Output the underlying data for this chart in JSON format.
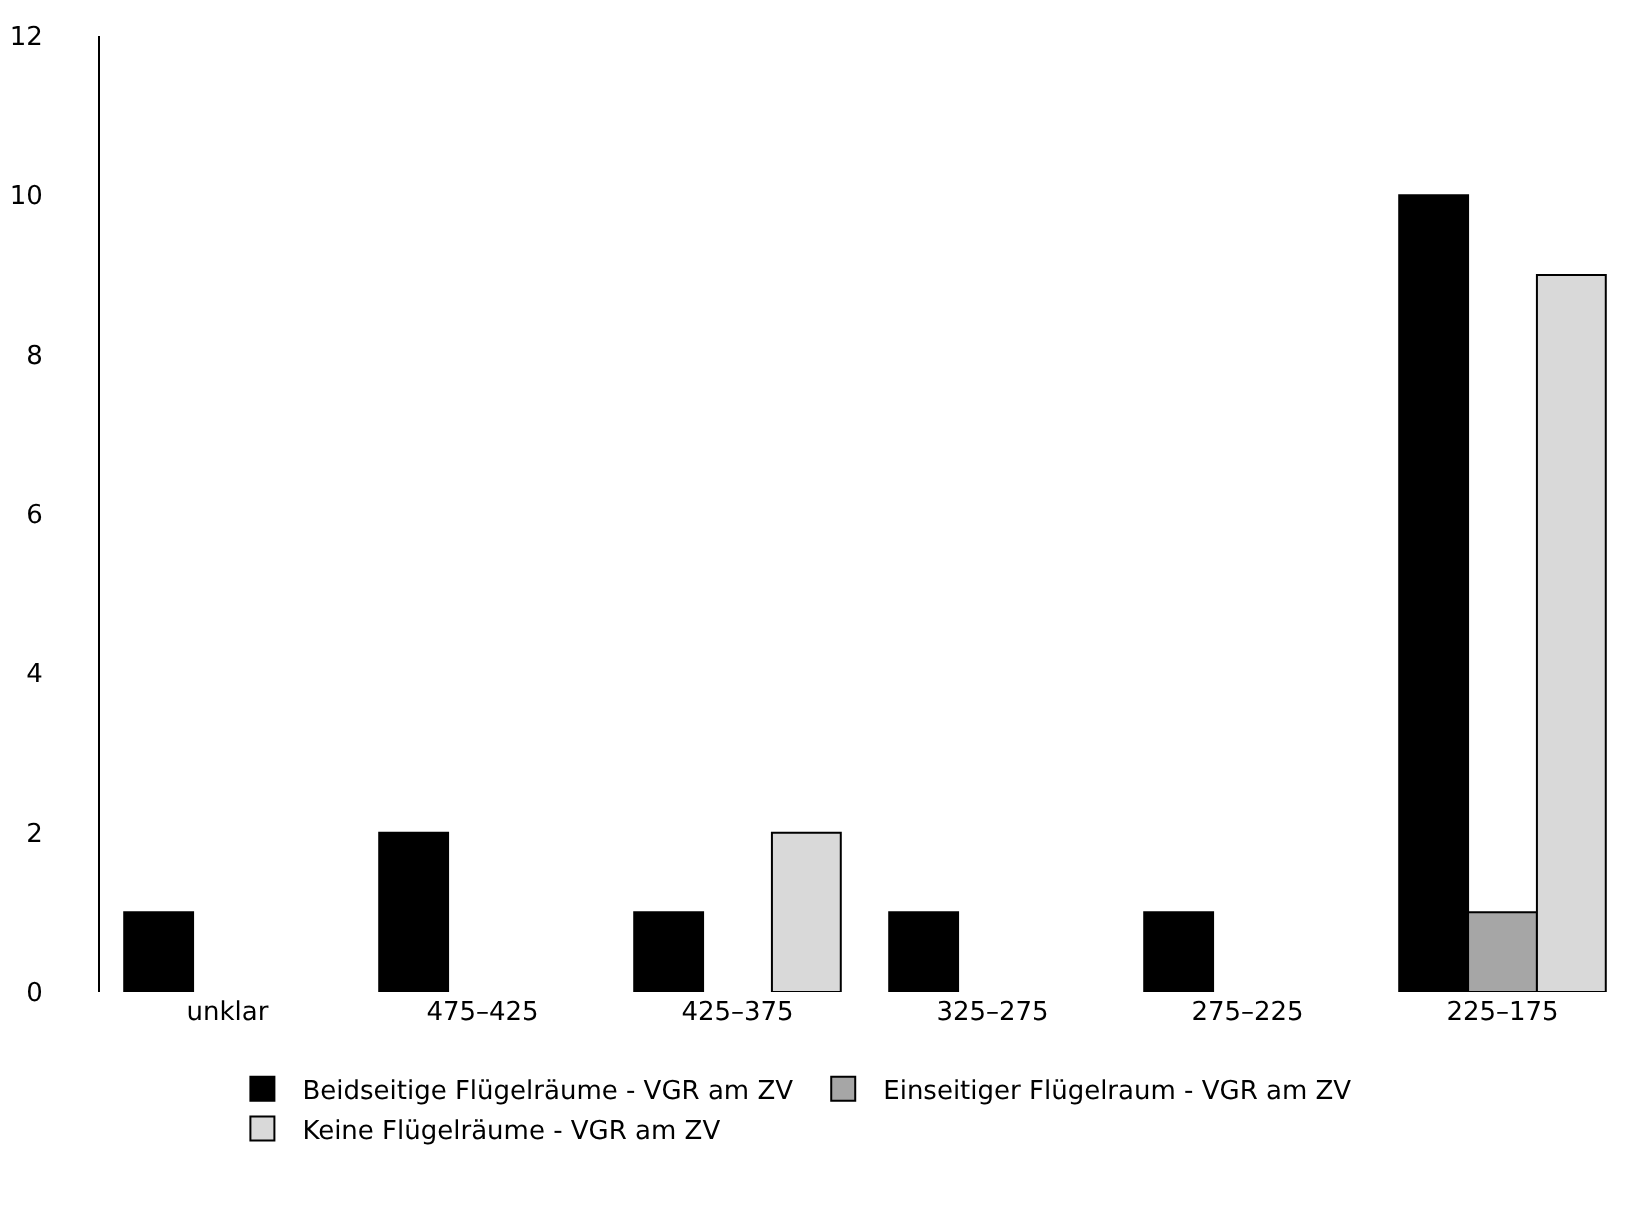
{
  "chart_data": {
    "type": "bar",
    "categories": [
      "unklar",
      "475–425",
      "425–375",
      "325–275",
      "275–225",
      "225–175"
    ],
    "series": [
      {
        "name": "Beidseitige Flügelräume - VGR am ZV",
        "color": "#000000",
        "values": [
          1,
          2,
          1,
          1,
          1,
          10
        ]
      },
      {
        "name": "Einseitiger Flügelraum - VGR am ZV",
        "color": "#a6a6a6",
        "values": [
          null,
          null,
          null,
          null,
          null,
          1
        ]
      },
      {
        "name": "Keine Flügelräume - VGR am ZV",
        "color": "#d9d9d9",
        "values": [
          null,
          null,
          2,
          null,
          null,
          9
        ]
      }
    ],
    "ylim": [
      0,
      12
    ],
    "yticks": [
      0,
      2,
      4,
      6,
      8,
      10,
      12
    ],
    "legend": "bottom"
  }
}
